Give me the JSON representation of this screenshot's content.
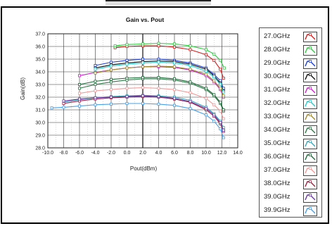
{
  "chart_data": {
    "type": "line",
    "title": "Gain vs. Pout",
    "xlabel": "Pout(dBm)",
    "ylabel": "Gain(dB)",
    "xlim": [
      -10,
      14
    ],
    "ylim": [
      28,
      37
    ],
    "x_ticks": [
      "-10.0",
      "-8.0",
      "-6.0",
      "-4.0",
      "-2.0",
      "0.0",
      "2.0",
      "4.0",
      "6.0",
      "8.0",
      "10.0",
      "12.0",
      "14.0"
    ],
    "y_ticks": [
      "28.0",
      "29.0",
      "30.0",
      "31.0",
      "32.0",
      "33.0",
      "34.0",
      "35.0",
      "36.0",
      "37.0"
    ],
    "grid": true,
    "legend_position": "right",
    "series": [
      {
        "name": "27.0GHz",
        "color": "#d42020",
        "points": [
          [
            -1.5,
            35.9
          ],
          [
            0,
            36.0
          ],
          [
            2,
            36.05
          ],
          [
            4,
            36.05
          ],
          [
            6,
            35.95
          ],
          [
            8,
            35.75
          ],
          [
            10,
            35.35
          ],
          [
            11,
            34.9
          ],
          [
            11.8,
            34.2
          ],
          [
            12.2,
            33.5
          ]
        ]
      },
      {
        "name": "28.0GHz",
        "color": "#2ecc40",
        "points": [
          [
            -1.5,
            36.05
          ],
          [
            0,
            36.15
          ],
          [
            2,
            36.2
          ],
          [
            4,
            36.25
          ],
          [
            6,
            36.2
          ],
          [
            8,
            36.05
          ],
          [
            10,
            35.75
          ],
          [
            11,
            35.4
          ],
          [
            11.8,
            34.9
          ],
          [
            12.3,
            34.3
          ]
        ]
      },
      {
        "name": "29.0GHz",
        "color": "#1f3fd0",
        "points": [
          [
            -4,
            34.5
          ],
          [
            -2,
            34.75
          ],
          [
            0,
            34.9
          ],
          [
            2,
            35.0
          ],
          [
            4,
            35.0
          ],
          [
            6,
            34.9
          ],
          [
            8,
            34.7
          ],
          [
            10,
            34.3
          ],
          [
            11,
            33.8
          ],
          [
            11.8,
            33.3
          ],
          [
            12.2,
            32.7
          ]
        ]
      },
      {
        "name": "30.0GHz",
        "color": "#111111",
        "points": [
          [
            -4,
            34.3
          ],
          [
            -2,
            34.55
          ],
          [
            0,
            34.7
          ],
          [
            2,
            34.8
          ],
          [
            4,
            34.85
          ],
          [
            6,
            34.8
          ],
          [
            8,
            34.6
          ],
          [
            10,
            34.2
          ],
          [
            11,
            33.7
          ],
          [
            11.8,
            33.1
          ],
          [
            12.2,
            32.5
          ]
        ]
      },
      {
        "name": "31.0GHz",
        "color": "#cc22cc",
        "points": [
          [
            -6,
            33.7
          ],
          [
            -4,
            33.95
          ],
          [
            -2,
            34.15
          ],
          [
            0,
            34.3
          ],
          [
            2,
            34.4
          ],
          [
            4,
            34.4
          ],
          [
            6,
            34.35
          ],
          [
            8,
            34.15
          ],
          [
            10,
            33.7
          ],
          [
            11,
            33.2
          ],
          [
            11.8,
            32.6
          ],
          [
            12.2,
            32.0
          ]
        ]
      },
      {
        "name": "32.0GHz",
        "color": "#22cccc",
        "points": [
          [
            -4,
            34.2
          ],
          [
            -2,
            34.45
          ],
          [
            0,
            34.6
          ],
          [
            2,
            34.7
          ],
          [
            4,
            34.75
          ],
          [
            6,
            34.7
          ],
          [
            8,
            34.5
          ],
          [
            10,
            34.05
          ],
          [
            11,
            33.6
          ],
          [
            11.8,
            33.0
          ],
          [
            12.2,
            32.4
          ]
        ]
      },
      {
        "name": "33.0GHz",
        "color": "#a08a30",
        "points": [
          [
            -4,
            33.9
          ],
          [
            -2,
            34.15
          ],
          [
            0,
            34.3
          ],
          [
            2,
            34.4
          ],
          [
            4,
            34.45
          ],
          [
            6,
            34.4
          ],
          [
            8,
            34.2
          ],
          [
            10,
            33.8
          ],
          [
            11,
            33.3
          ],
          [
            11.8,
            32.7
          ],
          [
            12.2,
            32.1
          ]
        ]
      },
      {
        "name": "34.0GHz",
        "color": "#2f7a48",
        "points": [
          [
            -6,
            32.7
          ],
          [
            -4,
            33.0
          ],
          [
            -2,
            33.2
          ],
          [
            0,
            33.35
          ],
          [
            2,
            33.45
          ],
          [
            4,
            33.45
          ],
          [
            6,
            33.35
          ],
          [
            8,
            33.1
          ],
          [
            10,
            32.6
          ],
          [
            11,
            32.1
          ],
          [
            11.8,
            31.5
          ],
          [
            12.2,
            30.9
          ]
        ]
      },
      {
        "name": "35.0GHz",
        "color": "#3aa6b8",
        "points": [
          [
            -8,
            31.6
          ],
          [
            -6,
            31.8
          ],
          [
            -4,
            31.95
          ],
          [
            -2,
            32.05
          ],
          [
            0,
            32.1
          ],
          [
            2,
            32.15
          ],
          [
            4,
            32.1
          ],
          [
            6,
            32.0
          ],
          [
            8,
            31.75
          ],
          [
            10,
            31.2
          ],
          [
            11,
            30.7
          ],
          [
            11.8,
            30.1
          ],
          [
            12.2,
            29.6
          ]
        ]
      },
      {
        "name": "36.0GHz",
        "color": "#1f6b3a",
        "points": [
          [
            -6,
            33.0
          ],
          [
            -4,
            33.25
          ],
          [
            -2,
            33.4
          ],
          [
            0,
            33.5
          ],
          [
            2,
            33.55
          ],
          [
            4,
            33.55
          ],
          [
            6,
            33.45
          ],
          [
            8,
            33.2
          ],
          [
            10,
            32.7
          ],
          [
            11,
            32.2
          ],
          [
            11.8,
            31.6
          ],
          [
            12.2,
            31.0
          ]
        ]
      },
      {
        "name": "37.0GHz",
        "color": "#f09a9a",
        "points": [
          [
            -6,
            32.3
          ],
          [
            -4,
            32.5
          ],
          [
            -2,
            32.6
          ],
          [
            0,
            32.7
          ],
          [
            2,
            32.75
          ],
          [
            4,
            32.7
          ],
          [
            6,
            32.6
          ],
          [
            8,
            32.35
          ],
          [
            10,
            31.9
          ],
          [
            11,
            31.4
          ],
          [
            11.8,
            30.9
          ],
          [
            12.2,
            30.3
          ]
        ]
      },
      {
        "name": "38.0GHz",
        "color": "#a02040",
        "points": [
          [
            -8,
            31.5
          ],
          [
            -6,
            31.7
          ],
          [
            -4,
            31.85
          ],
          [
            -2,
            31.95
          ],
          [
            0,
            32.0
          ],
          [
            2,
            32.05
          ],
          [
            4,
            32.0
          ],
          [
            6,
            31.85
          ],
          [
            8,
            31.6
          ],
          [
            10,
            31.0
          ],
          [
            11,
            30.5
          ],
          [
            11.8,
            29.9
          ],
          [
            12.2,
            29.3
          ]
        ]
      },
      {
        "name": "39.0GHz",
        "color": "#6a3aa0",
        "points": [
          [
            -8,
            31.7
          ],
          [
            -6,
            31.85
          ],
          [
            -4,
            31.95
          ],
          [
            -2,
            32.0
          ],
          [
            0,
            32.05
          ],
          [
            2,
            32.1
          ],
          [
            4,
            32.05
          ],
          [
            6,
            31.9
          ],
          [
            8,
            31.65
          ],
          [
            10,
            31.1
          ],
          [
            11,
            30.6
          ],
          [
            11.8,
            30.0
          ],
          [
            12.2,
            29.4
          ]
        ]
      },
      {
        "name": "39.9GHz",
        "color": "#4aa0e6",
        "points": [
          [
            -9.5,
            31.15
          ],
          [
            -8,
            31.2
          ],
          [
            -6,
            31.3
          ],
          [
            -4,
            31.4
          ],
          [
            -2,
            31.45
          ],
          [
            0,
            31.5
          ],
          [
            2,
            31.5
          ],
          [
            4,
            31.45
          ],
          [
            6,
            31.35
          ],
          [
            8,
            31.1
          ],
          [
            10,
            30.6
          ],
          [
            11,
            30.1
          ],
          [
            11.8,
            29.5
          ],
          [
            12.2,
            28.8
          ]
        ]
      }
    ]
  }
}
